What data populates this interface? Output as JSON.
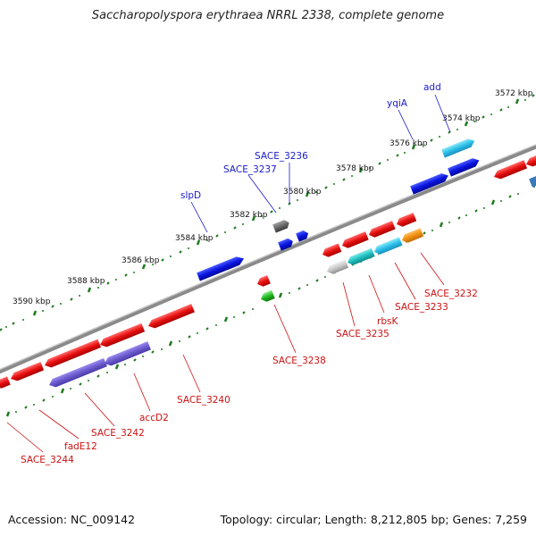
{
  "header": {
    "title": "Saccharopolyspora erythraea NRRL 2338, complete genome"
  },
  "footer": {
    "accession": "Accession: NC_009142",
    "summary": "Topology: circular; Length: 8,212,805 bp; Genes: 7,259"
  },
  "colors": {
    "backbone": "#8a8a8a",
    "tick": "#1e7a1e",
    "label_forward": "#1a1acc",
    "label_reverse": "#cc1111"
  },
  "scale_labels": [
    "3572 kbp",
    "3574 kbp",
    "3576 kbp",
    "3578 kbp",
    "3580 kbp",
    "3582 kbp",
    "3584 kbp",
    "3586 kbp",
    "3588 kbp",
    "3590 kbp"
  ],
  "gene_labels": {
    "forward": [
      "add",
      "yqiA",
      "SACE_3236",
      "SACE_3237",
      "slpD"
    ],
    "reverse": [
      "SACE_3232",
      "SACE_3233",
      "rbsK",
      "SACE_3235",
      "SACE_3238",
      "SACE_3240",
      "accD2",
      "SACE_3242",
      "fadE12",
      "SACE_3244"
    ]
  }
}
